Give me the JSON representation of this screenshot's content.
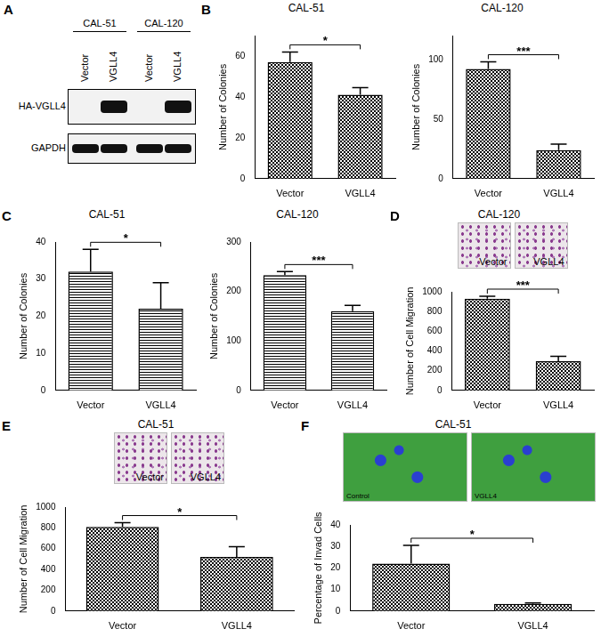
{
  "blot": {
    "panel": "A",
    "groups": [
      {
        "name": "CAL-51",
        "lanes": [
          "Vector",
          "VGLL4"
        ]
      },
      {
        "name": "CAL-120",
        "lanes": [
          "Vector",
          "VGLL4"
        ]
      }
    ],
    "rows": [
      {
        "label": "HA-VGLL4",
        "bands": [
          false,
          true,
          false,
          true
        ]
      },
      {
        "label": "GAPDH",
        "bands": [
          true,
          true,
          true,
          true
        ]
      }
    ]
  },
  "chart_data": [
    {
      "type": "bar",
      "panel": "B",
      "title": "CAL-51",
      "y_label": "Number of Colonies",
      "categories": [
        "Vector",
        "VGLL4"
      ],
      "values": [
        57,
        41
      ],
      "error": [
        5,
        3.5
      ],
      "color": "#000000",
      "ylim": [
        0,
        70
      ],
      "yticks": [
        0,
        20,
        40,
        60
      ],
      "grid": false,
      "annotations": [
        {
          "text": "*",
          "from": "Vector",
          "to": "VGLL4"
        }
      ]
    },
    {
      "type": "bar",
      "title": "CAL-120",
      "y_label": "Number of Colonies",
      "categories": [
        "Vector",
        "VGLL4"
      ],
      "values": [
        92,
        24
      ],
      "error": [
        6,
        5
      ],
      "color": "#000000",
      "ylim": [
        0,
        120
      ],
      "yticks": [
        0,
        50,
        100
      ],
      "grid": false,
      "annotations": [
        {
          "text": "***",
          "from": "Vector",
          "to": "VGLL4"
        }
      ]
    },
    {
      "type": "bar",
      "panel": "C",
      "title": "CAL-51",
      "y_label": "Number of Colonies",
      "categories": [
        "Vector",
        "VGLL4"
      ],
      "values": [
        32,
        22
      ],
      "error": [
        6,
        7
      ],
      "color": "#000000",
      "ylim": [
        0,
        40
      ],
      "yticks": [
        0,
        10,
        20,
        30,
        40
      ],
      "grid": false,
      "annotations": [
        {
          "text": "*",
          "from": "Vector",
          "to": "VGLL4"
        }
      ]
    },
    {
      "type": "bar",
      "title": "CAL-120",
      "y_label": "Number of Colonies",
      "categories": [
        "Vector",
        "VGLL4"
      ],
      "values": [
        233,
        160
      ],
      "error": [
        7,
        12
      ],
      "color": "#000000",
      "ylim": [
        0,
        300
      ],
      "yticks": [
        0,
        100,
        200,
        300
      ],
      "grid": false,
      "annotations": [
        {
          "text": "***",
          "from": "Vector",
          "to": "VGLL4"
        }
      ]
    },
    {
      "type": "bar",
      "panel": "D",
      "title": "CAL-120",
      "y_label": "Number of Cell Migration",
      "images": [
        "Vector",
        "VGLL4"
      ],
      "categories": [
        "Vector",
        "VGLL4"
      ],
      "values": [
        930,
        295
      ],
      "error": [
        25,
        50
      ],
      "color": "#000000",
      "ylim": [
        0,
        1000
      ],
      "yticks": [
        0,
        200,
        400,
        600,
        800,
        1000
      ],
      "grid": false,
      "annotations": [
        {
          "text": "***",
          "from": "Vector",
          "to": "VGLL4"
        }
      ]
    },
    {
      "type": "bar",
      "panel": "E",
      "title": "CAL-51",
      "y_label": "Number of Cell Migration",
      "images": [
        "Vector",
        "VGLL4"
      ],
      "categories": [
        "Vector",
        "VGLL4"
      ],
      "values": [
        810,
        520
      ],
      "error": [
        40,
        100
      ],
      "color": "#000000",
      "ylim": [
        0,
        1000
      ],
      "yticks": [
        0,
        200,
        400,
        600,
        800,
        1000
      ],
      "grid": false,
      "annotations": [
        {
          "text": "*",
          "from": "Vector",
          "to": "VGLL4"
        }
      ]
    },
    {
      "type": "bar",
      "panel": "F",
      "title": "CAL-51",
      "y_label": "Percentage of Invad Cells",
      "images": [
        "Control",
        "VGLL4"
      ],
      "categories": [
        "Vector",
        "VGLL4"
      ],
      "values": [
        22,
        3.3
      ],
      "error": [
        8.5,
        0.4
      ],
      "color": "#000000",
      "ylim": [
        0,
        40
      ],
      "yticks": [
        0,
        10,
        20,
        30,
        40
      ],
      "grid": false,
      "annotations": [
        {
          "text": "*",
          "from": "Vector",
          "to": "VGLL4"
        }
      ]
    }
  ]
}
